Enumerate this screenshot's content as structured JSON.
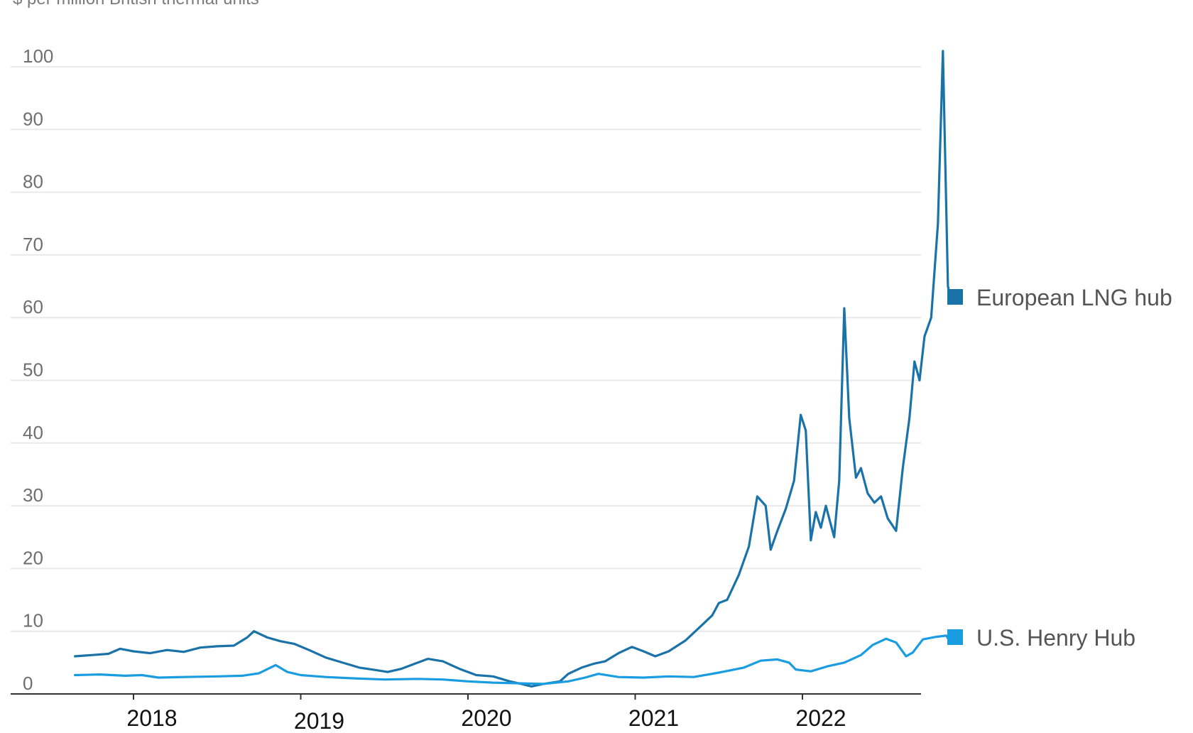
{
  "chart_data": {
    "type": "line",
    "title_fragment": "$ per million British thermal units",
    "xlabel": "",
    "ylabel": "",
    "ylim": [
      0,
      100
    ],
    "yticks": [
      "0",
      "10",
      "20",
      "30",
      "40",
      "50",
      "60",
      "70",
      "80",
      "90",
      "100"
    ],
    "xticks": [
      "2018",
      "2019",
      "2020",
      "2021",
      "2022"
    ],
    "grid": "horizontal",
    "legend_position": "right",
    "series": [
      {
        "name": "European LNG hub",
        "color": "#1a73a8",
        "points": [
          [
            2017.65,
            6.0
          ],
          [
            2017.75,
            6.2
          ],
          [
            2017.85,
            6.4
          ],
          [
            2017.92,
            7.2
          ],
          [
            2018.0,
            6.8
          ],
          [
            2018.1,
            6.5
          ],
          [
            2018.2,
            7.0
          ],
          [
            2018.3,
            6.7
          ],
          [
            2018.4,
            7.4
          ],
          [
            2018.5,
            7.6
          ],
          [
            2018.6,
            7.7
          ],
          [
            2018.68,
            9.0
          ],
          [
            2018.72,
            10.0
          ],
          [
            2018.8,
            9.0
          ],
          [
            2018.88,
            8.4
          ],
          [
            2018.96,
            8.0
          ],
          [
            2019.05,
            7.0
          ],
          [
            2019.15,
            5.8
          ],
          [
            2019.25,
            5.0
          ],
          [
            2019.35,
            4.2
          ],
          [
            2019.45,
            3.8
          ],
          [
            2019.52,
            3.5
          ],
          [
            2019.6,
            4.0
          ],
          [
            2019.68,
            4.8
          ],
          [
            2019.76,
            5.6
          ],
          [
            2019.85,
            5.2
          ],
          [
            2019.95,
            4.0
          ],
          [
            2020.05,
            3.0
          ],
          [
            2020.15,
            2.8
          ],
          [
            2020.25,
            2.0
          ],
          [
            2020.32,
            1.6
          ],
          [
            2020.38,
            1.2
          ],
          [
            2020.45,
            1.6
          ],
          [
            2020.55,
            2.0
          ],
          [
            2020.6,
            3.2
          ],
          [
            2020.68,
            4.2
          ],
          [
            2020.75,
            4.8
          ],
          [
            2020.82,
            5.2
          ],
          [
            2020.9,
            6.5
          ],
          [
            2020.98,
            7.5
          ],
          [
            2021.05,
            6.8
          ],
          [
            2021.12,
            6.0
          ],
          [
            2021.2,
            6.8
          ],
          [
            2021.3,
            8.5
          ],
          [
            2021.38,
            10.5
          ],
          [
            2021.46,
            12.5
          ],
          [
            2021.5,
            14.5
          ],
          [
            2021.55,
            15.0
          ],
          [
            2021.62,
            19.0
          ],
          [
            2021.68,
            23.5
          ],
          [
            2021.73,
            31.5
          ],
          [
            2021.78,
            30.0
          ],
          [
            2021.81,
            23.0
          ],
          [
            2021.85,
            26.0
          ],
          [
            2021.9,
            29.5
          ],
          [
            2021.95,
            34.0
          ],
          [
            2021.99,
            44.5
          ],
          [
            2022.02,
            42.0
          ],
          [
            2022.05,
            24.5
          ],
          [
            2022.08,
            29.0
          ],
          [
            2022.11,
            26.5
          ],
          [
            2022.14,
            30.0
          ],
          [
            2022.19,
            25.0
          ],
          [
            2022.22,
            34.0
          ],
          [
            2022.25,
            61.5
          ],
          [
            2022.28,
            44.0
          ],
          [
            2022.32,
            34.5
          ],
          [
            2022.35,
            36.0
          ],
          [
            2022.39,
            32.0
          ],
          [
            2022.43,
            30.5
          ],
          [
            2022.47,
            31.5
          ],
          [
            2022.51,
            28.0
          ],
          [
            2022.56,
            26.0
          ],
          [
            2022.6,
            36.0
          ],
          [
            2022.64,
            44.0
          ],
          [
            2022.67,
            53.0
          ],
          [
            2022.7,
            50.0
          ],
          [
            2022.73,
            57.0
          ],
          [
            2022.77,
            60.0
          ],
          [
            2022.81,
            75.0
          ],
          [
            2022.84,
            102.5
          ],
          [
            2022.87,
            65.0
          ],
          [
            2022.89,
            62.5
          ]
        ]
      },
      {
        "name": "U.S. Henry Hub",
        "color": "#1a9de0",
        "points": [
          [
            2017.65,
            3.0
          ],
          [
            2017.8,
            3.1
          ],
          [
            2017.95,
            2.9
          ],
          [
            2018.05,
            3.0
          ],
          [
            2018.15,
            2.6
          ],
          [
            2018.3,
            2.7
          ],
          [
            2018.5,
            2.8
          ],
          [
            2018.65,
            2.9
          ],
          [
            2018.75,
            3.3
          ],
          [
            2018.85,
            4.6
          ],
          [
            2018.92,
            3.5
          ],
          [
            2019.0,
            3.0
          ],
          [
            2019.15,
            2.7
          ],
          [
            2019.3,
            2.5
          ],
          [
            2019.5,
            2.3
          ],
          [
            2019.7,
            2.4
          ],
          [
            2019.85,
            2.3
          ],
          [
            2020.0,
            2.0
          ],
          [
            2020.15,
            1.8
          ],
          [
            2020.3,
            1.7
          ],
          [
            2020.45,
            1.6
          ],
          [
            2020.6,
            2.0
          ],
          [
            2020.7,
            2.6
          ],
          [
            2020.78,
            3.2
          ],
          [
            2020.9,
            2.7
          ],
          [
            2021.05,
            2.6
          ],
          [
            2021.2,
            2.8
          ],
          [
            2021.35,
            2.7
          ],
          [
            2021.5,
            3.4
          ],
          [
            2021.65,
            4.2
          ],
          [
            2021.75,
            5.3
          ],
          [
            2021.85,
            5.5
          ],
          [
            2021.92,
            5.0
          ],
          [
            2021.96,
            3.9
          ],
          [
            2022.05,
            3.6
          ],
          [
            2022.15,
            4.4
          ],
          [
            2022.25,
            5.0
          ],
          [
            2022.35,
            6.2
          ],
          [
            2022.42,
            7.8
          ],
          [
            2022.5,
            8.8
          ],
          [
            2022.56,
            8.2
          ],
          [
            2022.62,
            6.0
          ],
          [
            2022.66,
            6.6
          ],
          [
            2022.72,
            8.7
          ],
          [
            2022.8,
            9.1
          ],
          [
            2022.86,
            9.3
          ],
          [
            2022.89,
            8.0
          ]
        ]
      }
    ]
  }
}
